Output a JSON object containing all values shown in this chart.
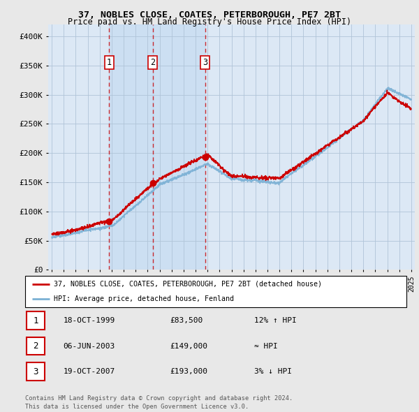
{
  "title": "37, NOBLES CLOSE, COATES, PETERBOROUGH, PE7 2BT",
  "subtitle": "Price paid vs. HM Land Registry's House Price Index (HPI)",
  "ylim": [
    0,
    420000
  ],
  "yticks": [
    0,
    50000,
    100000,
    150000,
    200000,
    250000,
    300000,
    350000,
    400000
  ],
  "sale_points": [
    {
      "year": 1999.79,
      "price": 83500,
      "label": "1"
    },
    {
      "year": 2003.43,
      "price": 149000,
      "label": "2"
    },
    {
      "year": 2007.79,
      "price": 193000,
      "label": "3"
    }
  ],
  "vline_years": [
    1999.79,
    2003.43,
    2007.79
  ],
  "legend_red": "37, NOBLES CLOSE, COATES, PETERBOROUGH, PE7 2BT (detached house)",
  "legend_blue": "HPI: Average price, detached house, Fenland",
  "table_rows": [
    {
      "num": "1",
      "date": "18-OCT-1999",
      "price": "£83,500",
      "note": "12% ↑ HPI"
    },
    {
      "num": "2",
      "date": "06-JUN-2003",
      "price": "£149,000",
      "note": "≈ HPI"
    },
    {
      "num": "3",
      "date": "19-OCT-2007",
      "price": "£193,000",
      "note": "3% ↓ HPI"
    }
  ],
  "footer": "Contains HM Land Registry data © Crown copyright and database right 2024.\nThis data is licensed under the Open Government Licence v3.0.",
  "bg_color": "#e8e8e8",
  "plot_bg_color": "#dce8f5",
  "grid_color": "#b0c4d8",
  "red_color": "#cc0000",
  "blue_color": "#7ab0d4",
  "vline_color": "#cc0000",
  "highlight_color": "#ccddf0"
}
